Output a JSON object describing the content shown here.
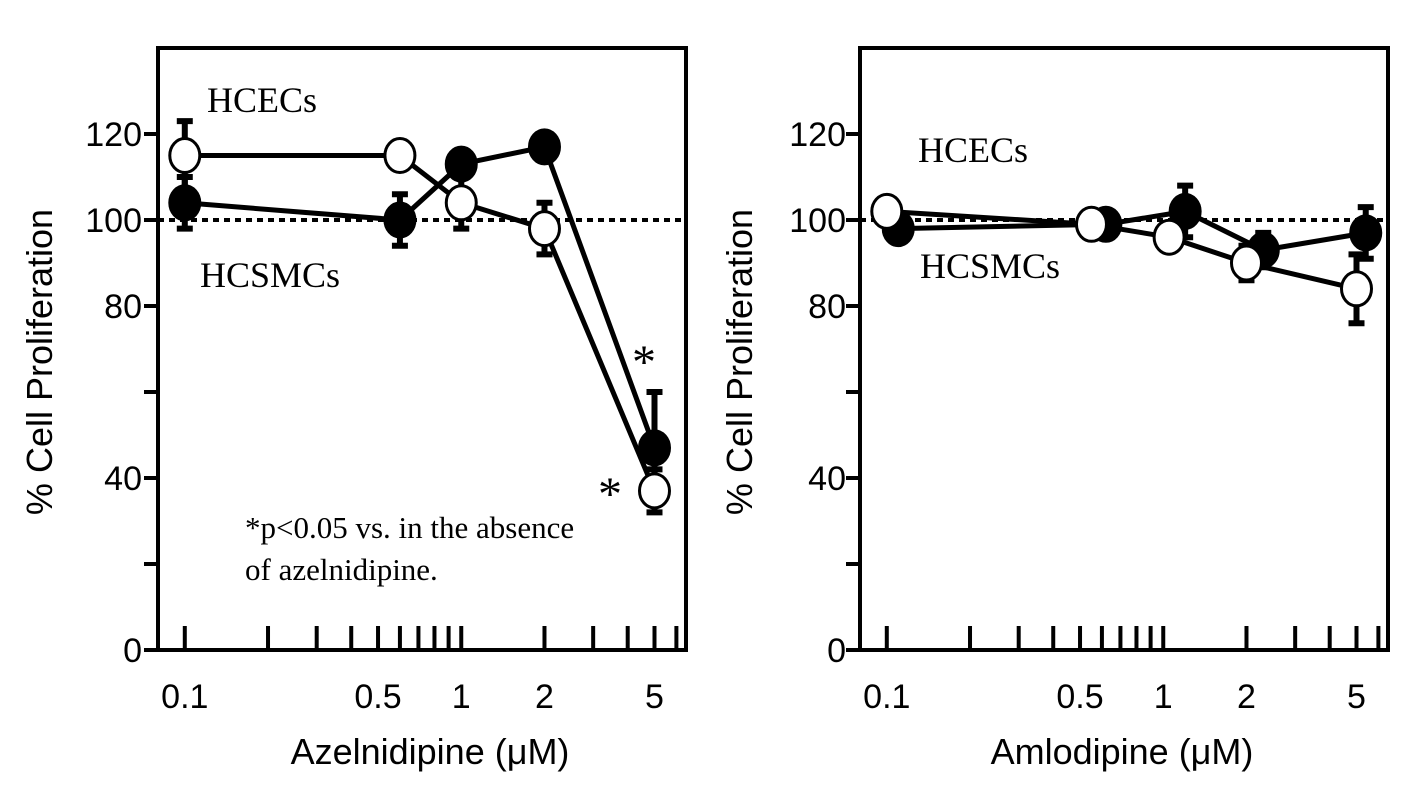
{
  "chart_data": [
    {
      "type": "line",
      "xlabel": "Azelnidipine (μM)",
      "ylabel": "% Cell Proliferation",
      "xscale": "log",
      "xlim": [
        0.08,
        6.5
      ],
      "ylim": [
        0,
        140
      ],
      "x_ticks": [
        0.1,
        0.5,
        1,
        2,
        5
      ],
      "x_tick_labels": [
        "0.1",
        "0.5",
        "1",
        "2",
        "5"
      ],
      "y_ticks": [
        0,
        20,
        40,
        60,
        80,
        100,
        120
      ],
      "y_tick_labels": [
        "0",
        "",
        "40",
        "",
        "80",
        "100",
        "120"
      ],
      "reference_line": 100,
      "x": [
        0.1,
        0.6,
        1,
        2,
        5
      ],
      "series": [
        {
          "name": "HCECs",
          "marker": "open-circle",
          "values": [
            115,
            115,
            104,
            98,
            37
          ],
          "errors": [
            8,
            0,
            6,
            6,
            5
          ],
          "label_pos": "upper"
        },
        {
          "name": "HCSMCs",
          "marker": "filled-circle",
          "values": [
            104,
            100,
            113,
            117,
            47
          ],
          "errors": [
            6,
            6,
            3,
            3,
            13
          ],
          "label_pos": "lower"
        }
      ],
      "annotations": {
        "star_1": "*",
        "star_2": "*",
        "note_line1": "*p<0.05 vs. in the absence",
        "note_line2": "of azelnidipine."
      }
    },
    {
      "type": "line",
      "xlabel": "Amlodipine (μM)",
      "ylabel": "% Cell Proliferation",
      "xscale": "log",
      "xlim": [
        0.08,
        6.5
      ],
      "ylim": [
        0,
        140
      ],
      "x_ticks": [
        0.1,
        0.5,
        1,
        2,
        5
      ],
      "x_tick_labels": [
        "0.1",
        "0.5",
        "1",
        "2",
        "5"
      ],
      "y_ticks": [
        0,
        20,
        40,
        60,
        80,
        100,
        120
      ],
      "y_tick_labels": [
        "0",
        "",
        "40",
        "",
        "80",
        "100",
        "120"
      ],
      "reference_line": 100,
      "series": [
        {
          "name": "HCECs",
          "marker": "open-circle",
          "x": [
            0.1,
            0.55,
            1.05,
            2.0,
            5.0
          ],
          "values": [
            102,
            99,
            96,
            90,
            84
          ],
          "errors": [
            0,
            0,
            3,
            4,
            8
          ],
          "label_pos": "upper"
        },
        {
          "name": "HCSMCs",
          "marker": "filled-circle",
          "x": [
            0.11,
            0.62,
            1.2,
            2.3,
            5.4
          ],
          "values": [
            98,
            99,
            102,
            93,
            97
          ],
          "errors": [
            0,
            0,
            6,
            4,
            6
          ],
          "label_pos": "lower"
        }
      ]
    }
  ]
}
